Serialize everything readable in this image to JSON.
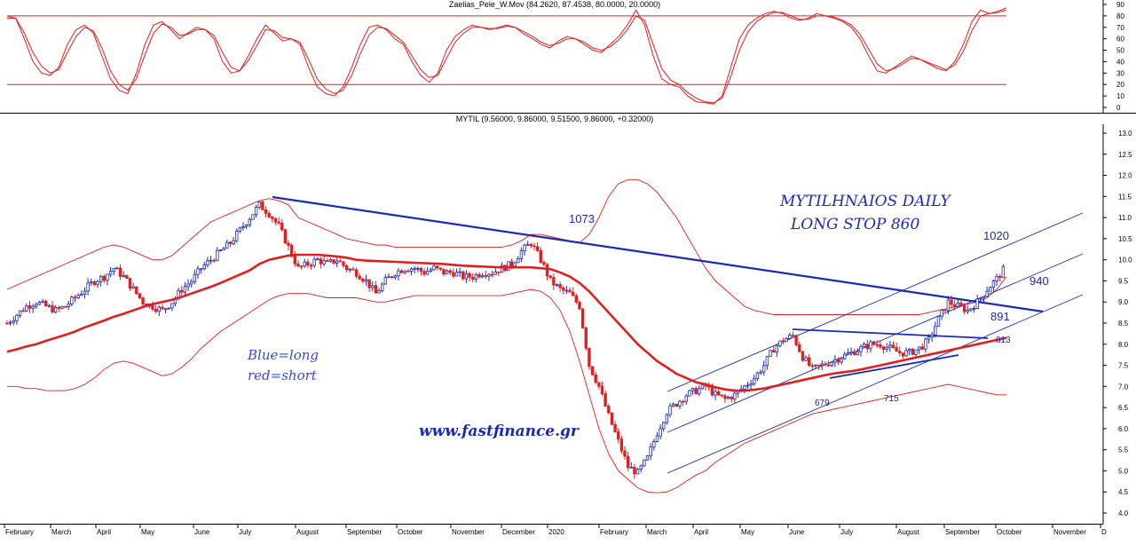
{
  "chart_data": [
    {
      "type": "line",
      "panel": "oscillator",
      "title": "Zaelias_Pele_W.Mov (84.2620, 87.4538, 80.0000, 20.0000)",
      "ylim": [
        0,
        90
      ],
      "y_ticks": [
        "0",
        "10",
        "20",
        "30",
        "40",
        "50",
        "60",
        "70",
        "80",
        "90"
      ],
      "reference_lines": [
        80,
        20
      ],
      "colors": {
        "line": "#e02020",
        "reference": "#e02020"
      },
      "series": [
        {
          "values": [
            80,
            78,
            60,
            40,
            30,
            28,
            35,
            55,
            68,
            72,
            65,
            45,
            25,
            15,
            12,
            30,
            55,
            72,
            75,
            68,
            60,
            65,
            70,
            68,
            60,
            40,
            30,
            32,
            45,
            60,
            72,
            65,
            58,
            60,
            55,
            35,
            18,
            12,
            10,
            18,
            35,
            55,
            70,
            72,
            68,
            60,
            55,
            40,
            28,
            22,
            30,
            50,
            62,
            68,
            72,
            70,
            68,
            70,
            72,
            70,
            64,
            60,
            55,
            52,
            58,
            62,
            60,
            55,
            50,
            48,
            55,
            62,
            72,
            85,
            72,
            45,
            25,
            20,
            18,
            10,
            5,
            4,
            3,
            10,
            35,
            60,
            72,
            78,
            82,
            84,
            82,
            78,
            76,
            78,
            82,
            80,
            78,
            75,
            70,
            60,
            45,
            32,
            30,
            35,
            40,
            45,
            42,
            38,
            34,
            32,
            40,
            55,
            75,
            85,
            82,
            84,
            87
          ]
        },
        {
          "values": [
            78,
            78,
            65,
            48,
            36,
            30,
            33,
            48,
            62,
            70,
            67,
            52,
            32,
            20,
            15,
            25,
            46,
            65,
            73,
            70,
            63,
            64,
            68,
            68,
            63,
            48,
            35,
            32,
            41,
            54,
            68,
            67,
            61,
            60,
            57,
            42,
            25,
            16,
            12,
            15,
            28,
            47,
            63,
            70,
            69,
            63,
            57,
            45,
            33,
            26,
            28,
            43,
            57,
            65,
            70,
            70,
            69,
            69,
            71,
            70,
            66,
            62,
            57,
            54,
            56,
            60,
            60,
            57,
            52,
            50,
            53,
            59,
            68,
            80,
            76,
            55,
            34,
            24,
            20,
            13,
            8,
            5,
            4,
            8,
            27,
            50,
            66,
            75,
            80,
            83,
            83,
            80,
            77,
            77,
            80,
            80,
            79,
            76,
            72,
            64,
            51,
            38,
            32,
            34,
            38,
            43,
            42,
            39,
            36,
            33,
            37,
            49,
            67,
            80,
            82,
            83,
            85
          ]
        }
      ]
    },
    {
      "type": "candlestick",
      "panel": "price",
      "title": "MYTIL (9.56000, 9.86000, 9.51500, 9.86000, +0.32000)",
      "ylim": [
        4.0,
        13.0
      ],
      "y_ticks": [
        "4.0",
        "4.5",
        "5.0",
        "5.5",
        "6.0",
        "6.5",
        "7.0",
        "7.5",
        "8.0",
        "8.5",
        "9.0",
        "9.5",
        "10.0",
        "10.5",
        "11.0",
        "11.5",
        "12.0",
        "12.5",
        "13.0"
      ],
      "x_ticks": [
        "February",
        "March",
        "April",
        "May",
        "June",
        "July",
        "August",
        "September",
        "October",
        "November",
        "December",
        "2020",
        "February",
        "March",
        "April",
        "May",
        "June",
        "July",
        "August",
        "September",
        "October",
        "November",
        "D"
      ],
      "colors": {
        "up": "#1a2ab8",
        "down": "#e02020",
        "ma": "#e02020",
        "band": "#e02020",
        "trend": "#1a2ab8"
      },
      "close": [
        8.5,
        8.7,
        8.9,
        9.0,
        8.9,
        8.8,
        8.9,
        9.1,
        9.3,
        9.5,
        9.6,
        9.8,
        9.6,
        9.3,
        9.0,
        8.9,
        8.8,
        9.0,
        9.3,
        9.5,
        9.8,
        10.0,
        10.2,
        10.4,
        10.7,
        11.0,
        11.3,
        11.1,
        10.8,
        10.3,
        9.8,
        9.9,
        10.0,
        9.9,
        10.0,
        9.8,
        9.7,
        9.5,
        9.2,
        9.5,
        9.7,
        9.8,
        9.8,
        9.7,
        9.8,
        9.7,
        9.7,
        9.6,
        9.6,
        9.7,
        9.7,
        9.8,
        9.9,
        10.2,
        10.4,
        10.0,
        9.5,
        9.3,
        9.2,
        8.9,
        7.5,
        7.0,
        6.3,
        5.7,
        5.1,
        4.95,
        5.3,
        5.9,
        6.4,
        6.6,
        6.8,
        6.9,
        7.0,
        6.8,
        6.7,
        6.8,
        7.0,
        7.2,
        7.5,
        7.9,
        8.1,
        8.2,
        7.7,
        7.4,
        7.5,
        7.6,
        7.7,
        7.8,
        7.9,
        8.0,
        8.0,
        7.9,
        7.8,
        7.8,
        7.9,
        8.1,
        8.6,
        9.0,
        8.9,
        8.8,
        9.0,
        9.3,
        9.55,
        9.86
      ],
      "ma": [
        7.82,
        7.88,
        7.95,
        8.0,
        8.08,
        8.15,
        8.22,
        8.3,
        8.4,
        8.48,
        8.56,
        8.65,
        8.72,
        8.8,
        8.88,
        8.95,
        9.0,
        9.05,
        9.12,
        9.2,
        9.28,
        9.36,
        9.45,
        9.55,
        9.65,
        9.75,
        9.9,
        10.0,
        10.05,
        10.1,
        10.12,
        10.12,
        10.12,
        10.1,
        10.08,
        10.05,
        10.0,
        9.98,
        9.97,
        9.96,
        9.95,
        9.94,
        9.93,
        9.92,
        9.91,
        9.9,
        9.88,
        9.86,
        9.85,
        9.84,
        9.83,
        9.82,
        9.82,
        9.82,
        9.82,
        9.8,
        9.78,
        9.7,
        9.6,
        9.45,
        9.25,
        9.0,
        8.75,
        8.5,
        8.25,
        8.0,
        7.8,
        7.6,
        7.45,
        7.3,
        7.2,
        7.1,
        7.05,
        6.98,
        6.93,
        6.9,
        6.9,
        6.92,
        6.95,
        7.0,
        7.05,
        7.1,
        7.15,
        7.2,
        7.25,
        7.3,
        7.33,
        7.36,
        7.4,
        7.45,
        7.5,
        7.55,
        7.6,
        7.65,
        7.7,
        7.75,
        7.8,
        7.85,
        7.9,
        7.95,
        8.0,
        8.05,
        8.1,
        8.15
      ],
      "upper_band": [
        9.3,
        9.4,
        9.5,
        9.6,
        9.7,
        9.8,
        9.9,
        10.0,
        10.1,
        10.2,
        10.3,
        10.35,
        10.3,
        10.2,
        10.1,
        10.0,
        10.0,
        10.1,
        10.3,
        10.5,
        10.7,
        10.9,
        11.0,
        11.1,
        11.2,
        11.3,
        11.4,
        11.45,
        11.4,
        11.3,
        11.0,
        10.9,
        10.8,
        10.7,
        10.6,
        10.5,
        10.45,
        10.4,
        10.35,
        10.35,
        10.3,
        10.3,
        10.3,
        10.3,
        10.3,
        10.3,
        10.3,
        10.3,
        10.3,
        10.3,
        10.3,
        10.3,
        10.35,
        10.45,
        10.6,
        10.6,
        10.55,
        10.5,
        10.45,
        10.4,
        10.6,
        11.0,
        11.5,
        11.8,
        11.9,
        11.9,
        11.8,
        11.6,
        11.3,
        11.0,
        10.6,
        10.2,
        9.8,
        9.5,
        9.3,
        9.1,
        8.9,
        8.8,
        8.75,
        8.7,
        8.7,
        8.7,
        8.7,
        8.7,
        8.7,
        8.7,
        8.7,
        8.7,
        8.7,
        8.7,
        8.7,
        8.7,
        8.7,
        8.7,
        8.7,
        8.75,
        8.8,
        8.85,
        8.9,
        8.95,
        9.0,
        9.1,
        9.3,
        9.6
      ],
      "lower_band": [
        7.0,
        7.0,
        6.95,
        6.95,
        6.9,
        6.9,
        6.9,
        6.95,
        7.05,
        7.2,
        7.4,
        7.55,
        7.6,
        7.55,
        7.45,
        7.35,
        7.25,
        7.3,
        7.45,
        7.65,
        7.9,
        8.1,
        8.3,
        8.45,
        8.6,
        8.75,
        8.9,
        9.05,
        9.15,
        9.2,
        9.2,
        9.2,
        9.15,
        9.1,
        9.1,
        9.1,
        9.1,
        9.05,
        9.0,
        9.0,
        9.05,
        9.1,
        9.15,
        9.15,
        9.15,
        9.15,
        9.15,
        9.15,
        9.15,
        9.15,
        9.15,
        9.15,
        9.2,
        9.25,
        9.3,
        9.25,
        9.1,
        8.8,
        8.3,
        7.6,
        6.8,
        6.0,
        5.4,
        5.0,
        4.8,
        4.6,
        4.5,
        4.48,
        4.5,
        4.6,
        4.75,
        4.9,
        5.0,
        5.2,
        5.35,
        5.5,
        5.65,
        5.75,
        5.85,
        5.95,
        6.05,
        6.15,
        6.25,
        6.35,
        6.4,
        6.45,
        6.5,
        6.55,
        6.6,
        6.65,
        6.7,
        6.75,
        6.8,
        6.85,
        6.9,
        6.95,
        7.0,
        7.05,
        7.0,
        6.95,
        6.9,
        6.85,
        6.8,
        6.8
      ],
      "annotations": {
        "label_1073": "1073",
        "label_1020": "1020",
        "label_940": "940",
        "label_891": "891",
        "label_813": "813",
        "label_679": "679",
        "label_715": "715",
        "heading_1": "MYTILHNAIOS DAILY",
        "heading_2": "LONG STOP 860",
        "legend_1": "Blue=long",
        "legend_2": "red=short",
        "website": "www.fastfinance.gr"
      }
    }
  ]
}
